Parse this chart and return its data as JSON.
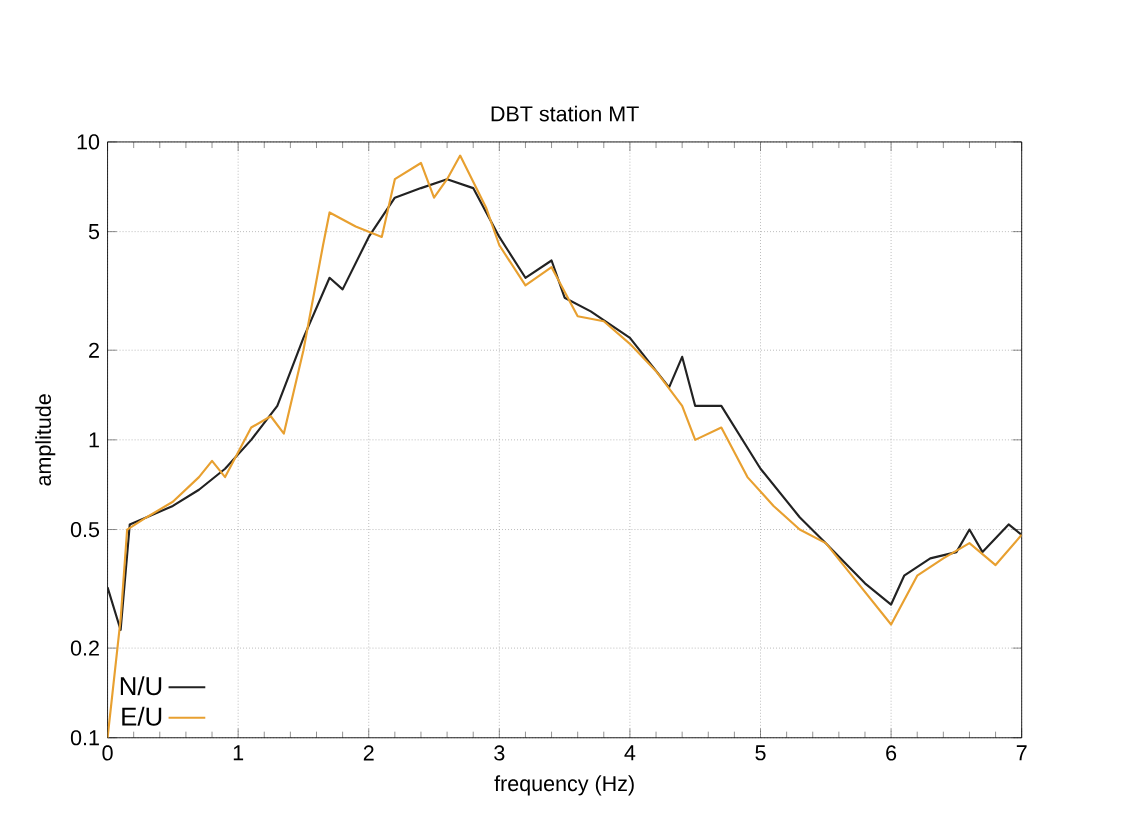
{
  "chart_data": {
    "type": "line",
    "title": "DBT station MT",
    "xlabel": "frequency (Hz)",
    "ylabel": "amplitude",
    "log": "y",
    "grid": true,
    "legend": "bottom left",
    "xlim": [
      0,
      7
    ],
    "ylim": [
      0.1,
      10
    ],
    "xticks": [
      0,
      1,
      2,
      3,
      4,
      5,
      6,
      7
    ],
    "yticks": [
      0.1,
      0.2,
      0.5,
      1,
      2,
      5,
      10
    ],
    "series": [
      {
        "name": "N/U",
        "color": "#222222",
        "x": [
          0,
          0.1,
          0.17,
          0.3,
          0.5,
          0.7,
          0.9,
          1.1,
          1.3,
          1.5,
          1.7,
          1.8,
          2.0,
          2.2,
          2.4,
          2.6,
          2.8,
          3.0,
          3.2,
          3.4,
          3.5,
          3.7,
          4.0,
          4.3,
          4.4,
          4.5,
          4.7,
          5.0,
          5.3,
          5.5,
          5.8,
          6.0,
          6.1,
          6.3,
          6.5,
          6.6,
          6.7,
          6.9,
          7.0
        ],
        "values": [
          0.32,
          0.23,
          0.52,
          0.55,
          0.6,
          0.68,
          0.8,
          1.0,
          1.3,
          2.2,
          3.5,
          3.2,
          4.8,
          6.5,
          7,
          7.5,
          7,
          4.8,
          3.5,
          4.0,
          3.0,
          2.7,
          2.2,
          1.5,
          1.9,
          1.3,
          1.3,
          0.8,
          0.55,
          0.45,
          0.33,
          0.28,
          0.35,
          0.4,
          0.42,
          0.5,
          0.42,
          0.52,
          0.48
        ]
      },
      {
        "name": "E/U",
        "color": "#e8a030",
        "x": [
          0,
          0.1,
          0.15,
          0.3,
          0.5,
          0.7,
          0.8,
          0.9,
          1.1,
          1.25,
          1.35,
          1.5,
          1.65,
          1.7,
          1.9,
          2.1,
          2.2,
          2.4,
          2.5,
          2.6,
          2.7,
          2.9,
          3.0,
          3.2,
          3.4,
          3.6,
          3.8,
          4.0,
          4.2,
          4.4,
          4.5,
          4.7,
          4.9,
          5.1,
          5.3,
          5.5,
          5.7,
          6.0,
          6.2,
          6.4,
          6.6,
          6.8,
          7.0
        ],
        "values": [
          0.1,
          0.25,
          0.5,
          0.55,
          0.62,
          0.75,
          0.85,
          0.75,
          1.1,
          1.2,
          1.05,
          2.0,
          4.5,
          5.8,
          5.2,
          4.8,
          7.5,
          8.5,
          6.5,
          7.5,
          9.0,
          6.0,
          4.5,
          3.3,
          3.8,
          2.6,
          2.5,
          2.1,
          1.7,
          1.3,
          1.0,
          1.1,
          0.75,
          0.6,
          0.5,
          0.45,
          0.35,
          0.24,
          0.35,
          0.4,
          0.45,
          0.38,
          0.48
        ]
      }
    ]
  }
}
